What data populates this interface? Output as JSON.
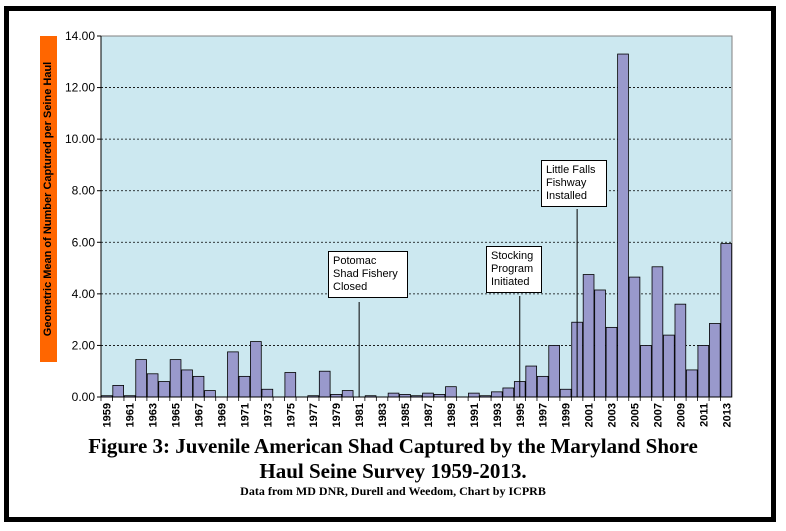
{
  "figure": {
    "title_line1": "Figure 3:  Juvenile American Shad Captured by the Maryland Shore",
    "title_line2": "Haul Seine Survey 1959-2013.",
    "subtitle": "Data from MD DNR, Durell and Weedom, Chart by ICPRB"
  },
  "chart_data": {
    "type": "bar",
    "ylabel": "Geometric Mean of Number Captured per Seine Haul",
    "xlabel": "",
    "ylim": [
      0,
      14
    ],
    "yticks": [
      "0.00",
      "2.00",
      "4.00",
      "6.00",
      "8.00",
      "10.00",
      "12.00",
      "14.00"
    ],
    "grid": "horizontal dashed",
    "plot_background": "#cce8f0",
    "bar_color": "#9999cc",
    "x": [
      1959,
      1960,
      1961,
      1962,
      1963,
      1964,
      1965,
      1966,
      1967,
      1968,
      1969,
      1970,
      1971,
      1972,
      1973,
      1974,
      1975,
      1976,
      1977,
      1978,
      1979,
      1980,
      1981,
      1982,
      1983,
      1984,
      1985,
      1986,
      1987,
      1988,
      1989,
      1990,
      1991,
      1992,
      1993,
      1994,
      1995,
      1996,
      1997,
      1998,
      1999,
      2000,
      2001,
      2002,
      2003,
      2004,
      2005,
      2006,
      2007,
      2008,
      2009,
      2010,
      2011,
      2012,
      2013
    ],
    "values": [
      0.05,
      0.45,
      0.05,
      1.45,
      0.9,
      0.6,
      1.45,
      1.05,
      0.8,
      0.25,
      0.0,
      1.75,
      0.8,
      2.15,
      0.3,
      0.0,
      0.95,
      0.0,
      0.05,
      1.0,
      0.1,
      0.25,
      0.0,
      0.05,
      0.0,
      0.15,
      0.1,
      0.05,
      0.15,
      0.1,
      0.4,
      0.0,
      0.15,
      0.05,
      0.2,
      0.35,
      0.6,
      1.2,
      0.8,
      2.0,
      0.3,
      2.9,
      4.75,
      4.15,
      2.7,
      13.3,
      4.65,
      2.0,
      5.05,
      2.4,
      3.6,
      1.05,
      2.0,
      2.85,
      5.95
    ],
    "xtick_labels": [
      "1959",
      "1961",
      "1963",
      "1965",
      "1967",
      "1969",
      "1971",
      "1973",
      "1975",
      "1977",
      "1979",
      "1981",
      "1983",
      "1985",
      "1987",
      "1989",
      "1991",
      "1993",
      "1995",
      "1997",
      "1999",
      "2001",
      "2003",
      "2005",
      "2007",
      "2009",
      "2011",
      "2013"
    ],
    "annotations": [
      {
        "id": "potomac",
        "lines": [
          "Potomac",
          "Shad Fishery",
          "Closed"
        ],
        "year": 1981
      },
      {
        "id": "stocking",
        "lines": [
          "Stocking",
          "Program",
          "Initiated"
        ],
        "year": 1995
      },
      {
        "id": "fishway",
        "lines": [
          "Little Falls",
          "Fishway",
          "Installed"
        ],
        "year": 2000
      }
    ]
  }
}
